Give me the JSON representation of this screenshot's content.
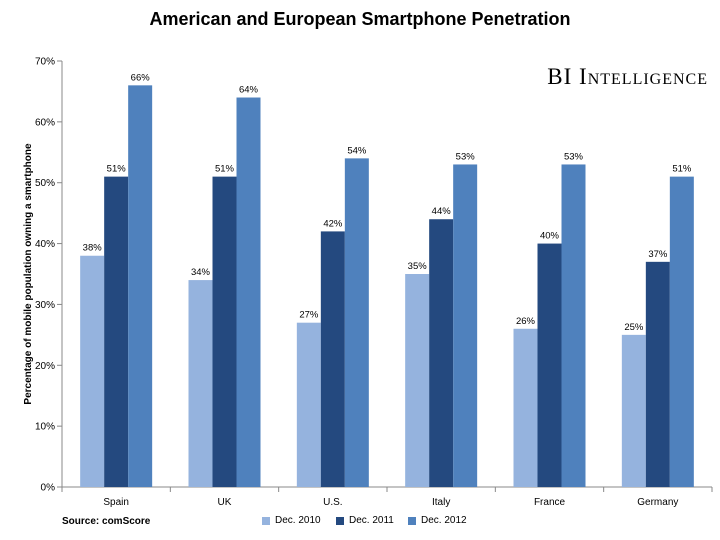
{
  "chart_data": {
    "type": "bar",
    "title": "American and European Smartphone Penetration",
    "brand": "BI Intelligence",
    "ylabel": "Percentage of mobile population owning a smartphone",
    "xlabel": "",
    "ylim": [
      0,
      70
    ],
    "yticks": [
      0,
      10,
      20,
      30,
      40,
      50,
      60,
      70
    ],
    "ytick_labels": [
      "0%",
      "10%",
      "20%",
      "30%",
      "40%",
      "50%",
      "60%",
      "70%"
    ],
    "categories": [
      "Spain",
      "UK",
      "U.S.",
      "Italy",
      "France",
      "Germany"
    ],
    "series": [
      {
        "name": "Dec. 2010",
        "color": "#95b3de",
        "values": [
          38,
          34,
          27,
          35,
          26,
          25
        ],
        "labels": [
          "38%",
          "34%",
          "27%",
          "35%",
          "26%",
          "25%"
        ]
      },
      {
        "name": "Dec. 2011",
        "color": "#24497f",
        "values": [
          51,
          51,
          42,
          44,
          40,
          37
        ],
        "labels": [
          "51%",
          "51%",
          "42%",
          "44%",
          "40%",
          "37%"
        ]
      },
      {
        "name": "Dec. 2012",
        "color": "#4f81bd",
        "values": [
          66,
          64,
          54,
          53,
          53,
          51
        ],
        "labels": [
          "66%",
          "64%",
          "54%",
          "53%",
          "53%",
          "51%"
        ]
      }
    ],
    "source": "Source: comScore",
    "grid": false,
    "legend_position": "bottom"
  }
}
